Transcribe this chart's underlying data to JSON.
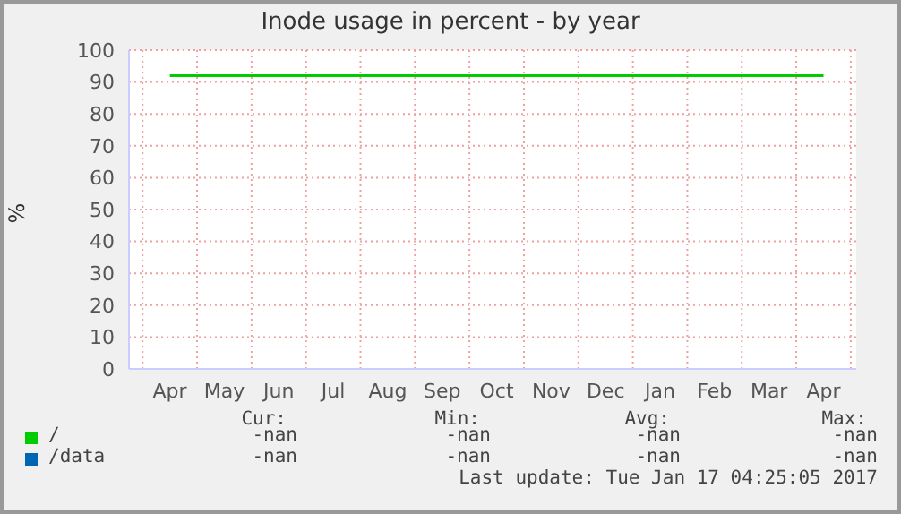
{
  "chart_data": {
    "type": "line",
    "title": "Inode usage in percent - by year",
    "ylabel": "%",
    "categories": [
      "Apr",
      "May",
      "Jun",
      "Jul",
      "Aug",
      "Sep",
      "Oct",
      "Nov",
      "Dec",
      "Jan",
      "Feb",
      "Mar",
      "Apr"
    ],
    "series": [
      {
        "name": "/",
        "color": "#00cc00",
        "values": [
          92,
          92,
          92,
          92,
          92,
          92,
          92,
          92,
          92,
          92,
          92,
          92,
          92
        ]
      },
      {
        "name": "/data",
        "color": "#0066b3",
        "values": [
          null,
          null,
          null,
          null,
          null,
          null,
          null,
          null,
          null,
          null,
          null,
          null,
          null
        ]
      }
    ],
    "ylim": [
      0,
      100
    ],
    "yticks": [
      0,
      10,
      20,
      30,
      40,
      50,
      60,
      70,
      80,
      90,
      100
    ],
    "grid": true,
    "legend": "bottom left",
    "marker": "none",
    "annotations": [
      "Cur:",
      "Min:",
      "Avg:",
      "Max:",
      "-nan",
      "-nan",
      "-nan",
      "-nan",
      "-nan",
      "-nan",
      "-nan",
      "-nan",
      "Last update: Tue Jan 17 04:25:05 2017"
    ]
  }
}
